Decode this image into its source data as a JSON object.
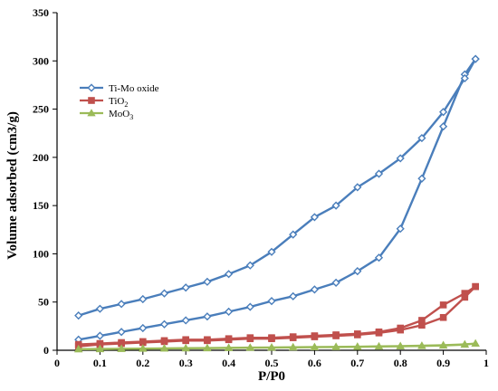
{
  "chart_data": {
    "type": "line",
    "title": "",
    "xlabel": "P/P0",
    "ylabel": "Volume adsorbed (cm3/g)",
    "xlim": [
      0,
      1
    ],
    "ylim": [
      0,
      350
    ],
    "x_ticks": [
      "0",
      "0.1",
      "0.2",
      "0.3",
      "0.4",
      "0.5",
      "0.6",
      "0.7",
      "0.8",
      "0.9",
      "1"
    ],
    "y_ticks": [
      "0",
      "50",
      "100",
      "150",
      "200",
      "250",
      "300",
      "350"
    ],
    "grid": false,
    "legend_position": "top-left",
    "series": [
      {
        "name": "Ti-Mo oxide",
        "color": "#4a7ebb",
        "marker": "diamond",
        "adsorption": {
          "x": [
            0.05,
            0.1,
            0.15,
            0.2,
            0.25,
            0.3,
            0.35,
            0.4,
            0.45,
            0.5,
            0.55,
            0.6,
            0.65,
            0.7,
            0.75,
            0.8,
            0.85,
            0.9,
            0.95,
            0.975
          ],
          "y": [
            11,
            15,
            19,
            23,
            27,
            31,
            35,
            40,
            45,
            51,
            56,
            63,
            70,
            82,
            96,
            126,
            178,
            232,
            286,
            302
          ]
        },
        "desorption": {
          "x": [
            0.975,
            0.95,
            0.9,
            0.85,
            0.8,
            0.75,
            0.7,
            0.65,
            0.6,
            0.55,
            0.5,
            0.45,
            0.4,
            0.35,
            0.3,
            0.25,
            0.2,
            0.15,
            0.1,
            0.05
          ],
          "y": [
            302,
            282,
            247,
            220,
            199,
            183,
            169,
            150,
            138,
            120,
            102,
            88,
            79,
            71,
            65,
            59,
            53,
            48,
            43,
            36
          ]
        }
      },
      {
        "name": "TiO2",
        "label_main": "TiO",
        "label_sub": "2",
        "color": "#c0504d",
        "marker": "square",
        "adsorption": {
          "x": [
            0.05,
            0.1,
            0.15,
            0.2,
            0.25,
            0.3,
            0.35,
            0.4,
            0.45,
            0.5,
            0.55,
            0.6,
            0.65,
            0.7,
            0.75,
            0.8,
            0.85,
            0.9,
            0.95,
            0.975
          ],
          "y": [
            4,
            6,
            7,
            8,
            9,
            10,
            10,
            11,
            12,
            12,
            13,
            14,
            15,
            16,
            18,
            21,
            26,
            34,
            55,
            66
          ]
        },
        "desorption": {
          "x": [
            0.975,
            0.95,
            0.9,
            0.85,
            0.8,
            0.75,
            0.7,
            0.65,
            0.6,
            0.55,
            0.5,
            0.45,
            0.4,
            0.35,
            0.3,
            0.25,
            0.2,
            0.15,
            0.1,
            0.05
          ],
          "y": [
            66,
            59,
            47,
            31,
            23,
            19,
            17,
            16,
            15,
            14,
            13,
            13,
            12,
            11,
            11,
            10,
            9,
            8,
            7,
            6
          ]
        }
      },
      {
        "name": "MoO3",
        "label_main": "MoO",
        "label_sub": "3",
        "color": "#9bbb59",
        "marker": "triangle",
        "adsorption": {
          "x": [
            0.05,
            0.1,
            0.15,
            0.2,
            0.25,
            0.3,
            0.35,
            0.4,
            0.45,
            0.5,
            0.55,
            0.6,
            0.65,
            0.7,
            0.75,
            0.8,
            0.85,
            0.9,
            0.95,
            0.975
          ],
          "y": [
            1,
            1.2,
            1.4,
            1.6,
            1.8,
            2,
            2.1,
            2.3,
            2.5,
            2.7,
            2.9,
            3.1,
            3.3,
            3.5,
            3.8,
            4.1,
            4.4,
            4.9,
            5.8,
            7
          ]
        },
        "desorption": {
          "x": [
            0.975,
            0.95,
            0.9,
            0.85,
            0.8,
            0.75,
            0.7,
            0.65,
            0.6,
            0.55,
            0.5,
            0.45,
            0.4,
            0.35,
            0.3,
            0.25,
            0.2,
            0.15,
            0.1,
            0.05
          ],
          "y": [
            7,
            6.2,
            5.3,
            4.8,
            4.4,
            4.1,
            3.8,
            3.6,
            3.4,
            3.2,
            3,
            2.8,
            2.6,
            2.4,
            2.2,
            2,
            1.8,
            1.6,
            1.4,
            1.2
          ]
        }
      }
    ]
  }
}
